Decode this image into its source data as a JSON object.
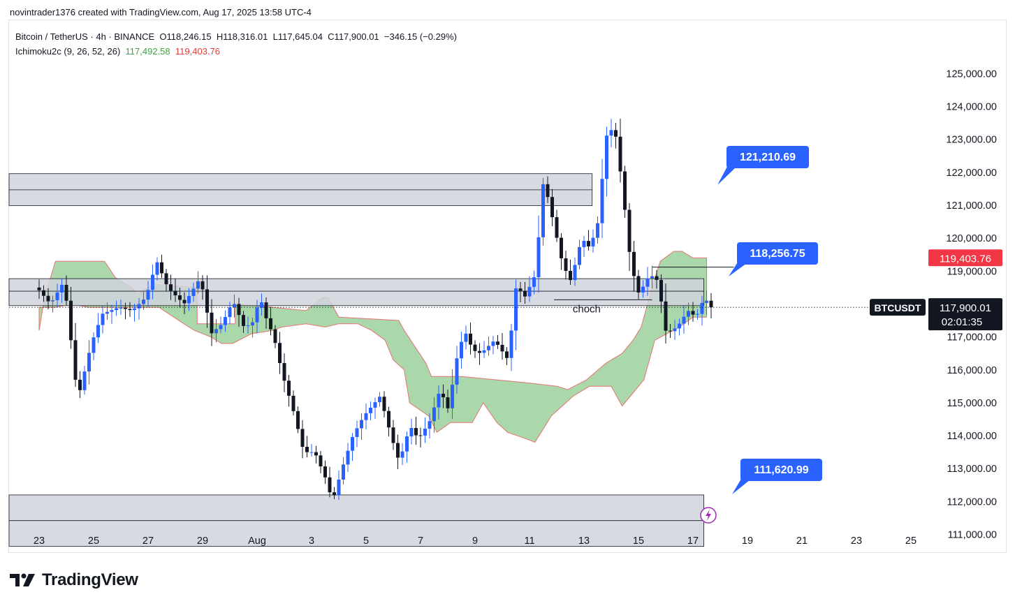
{
  "header": {
    "attribution": "novintrader1376 created with TradingView.com, Aug 17, 2025 13:58 UTC-4"
  },
  "legend": {
    "symbol_line": "Bitcoin / TetherUS · 4h · BINANCE",
    "open": "O118,246.15",
    "high": "H118,316.01",
    "low": "L117,645.04",
    "close": "C117,900.01",
    "change": "−346.15 (−0.29%)",
    "indicator": "Ichimoku2c (9, 26, 52, 26)",
    "ind_value1": "117,492.58",
    "ind_value2": "119,403.76"
  },
  "brand": {
    "name": "TradingView"
  },
  "colors": {
    "up": "#2962ff",
    "down": "#131722",
    "cloud": "#a5d6a7",
    "cloud_edge": "#e57373",
    "zone": "#d1d4dc",
    "tag_blue": "#2962ff",
    "tag_red": "#f23645",
    "tag_green": "#43a047",
    "tag_black": "#131722"
  },
  "chart_data": {
    "type": "candlestick",
    "symbol": "BTCUSDT",
    "timeframe": "4h",
    "ylim": [
      110500,
      126200
    ],
    "y_ticks": [
      111000,
      112000,
      113000,
      114000,
      115000,
      116000,
      117000,
      118000,
      119000,
      120000,
      121000,
      122000,
      123000,
      124000,
      125000
    ],
    "y_tick_labels": [
      "111,000.00",
      "112,000.00",
      "113,000.00",
      "114,000.00",
      "115,000.00",
      "116,000.00",
      "117,000.00",
      "118,000.00",
      "119,000.00",
      "120,000.00",
      "121,000.00",
      "122,000.00",
      "123,000.00",
      "124,000.00",
      "125,000.00"
    ],
    "x_ticks": [
      {
        "label": "23",
        "day": -8
      },
      {
        "label": "25",
        "day": -6
      },
      {
        "label": "27",
        "day": -4
      },
      {
        "label": "29",
        "day": -2
      },
      {
        "label": "Aug",
        "day": 0
      },
      {
        "label": "3",
        "day": 2
      },
      {
        "label": "5",
        "day": 4
      },
      {
        "label": "7",
        "day": 6
      },
      {
        "label": "9",
        "day": 8
      },
      {
        "label": "11",
        "day": 10
      },
      {
        "label": "13",
        "day": 12
      },
      {
        "label": "15",
        "day": 14
      },
      {
        "label": "17",
        "day": 16
      },
      {
        "label": "19",
        "day": 18
      },
      {
        "label": "21",
        "day": 20
      },
      {
        "label": "23",
        "day": 22
      },
      {
        "label": "25",
        "day": 24
      }
    ],
    "price_path": [
      [
        -8,
        118500
      ],
      [
        -7.5,
        118000
      ],
      [
        -7,
        118700
      ],
      [
        -6.5,
        115100
      ],
      [
        -6,
        116800
      ],
      [
        -5.6,
        117700
      ],
      [
        -5,
        117900
      ],
      [
        -4.5,
        117800
      ],
      [
        -4,
        118200
      ],
      [
        -3.6,
        119300
      ],
      [
        -3.2,
        118500
      ],
      [
        -2.6,
        118000
      ],
      [
        -2,
        118800
      ],
      [
        -1.6,
        117100
      ],
      [
        -1.2,
        117400
      ],
      [
        -0.8,
        118100
      ],
      [
        -0.4,
        117300
      ],
      [
        -0.1,
        117400
      ],
      [
        0.2,
        118200
      ],
      [
        0.4,
        117600
      ],
      [
        0.7,
        117000
      ],
      [
        1.0,
        115900
      ],
      [
        1.4,
        114800
      ],
      [
        1.8,
        113500
      ],
      [
        2.2,
        113500
      ],
      [
        2.6,
        112700
      ],
      [
        2.85,
        112000
      ],
      [
        3.2,
        113000
      ],
      [
        3.6,
        114000
      ],
      [
        4.0,
        114600
      ],
      [
        4.6,
        115200
      ],
      [
        5.0,
        114000
      ],
      [
        5.3,
        113200
      ],
      [
        5.7,
        114300
      ],
      [
        6.0,
        113900
      ],
      [
        6.4,
        114400
      ],
      [
        6.8,
        115400
      ],
      [
        7.1,
        114800
      ],
      [
        7.4,
        116300
      ],
      [
        7.7,
        117200
      ],
      [
        8.0,
        116600
      ],
      [
        8.3,
        116500
      ],
      [
        8.8,
        116900
      ],
      [
        9.3,
        116300
      ],
      [
        9.6,
        118600
      ],
      [
        9.9,
        118200
      ],
      [
        10.3,
        118900
      ],
      [
        10.6,
        121800
      ],
      [
        10.9,
        120700
      ],
      [
        11.3,
        119200
      ],
      [
        11.6,
        118700
      ],
      [
        12.0,
        120000
      ],
      [
        12.3,
        119700
      ],
      [
        12.6,
        120500
      ],
      [
        12.9,
        123100
      ],
      [
        13.2,
        123400
      ],
      [
        13.5,
        121500
      ],
      [
        13.8,
        119200
      ],
      [
        14.1,
        118300
      ],
      [
        14.5,
        118900
      ],
      [
        14.8,
        118700
      ],
      [
        15.1,
        117100
      ],
      [
        15.5,
        117300
      ],
      [
        15.9,
        117800
      ],
      [
        16.2,
        117600
      ],
      [
        16.5,
        118200
      ],
      [
        16.75,
        117900
      ]
    ],
    "cloud": [
      [
        -8,
        117200
      ],
      [
        -7.8,
        118200
      ],
      [
        -7.4,
        119300
      ],
      [
        -6,
        119300
      ],
      [
        -5.6,
        119300
      ],
      [
        -5.2,
        118800
      ],
      [
        -4.6,
        118500
      ],
      [
        -4.4,
        118300
      ],
      [
        -3.8,
        118600
      ],
      [
        -2.2,
        118500
      ],
      [
        -2.2,
        117400
      ],
      [
        -0.8,
        117400
      ],
      [
        -0.8,
        118000
      ],
      [
        0.6,
        117900
      ],
      [
        1.8,
        117800
      ],
      [
        2.4,
        118200
      ],
      [
        2.6,
        118200
      ],
      [
        3.0,
        117600
      ],
      [
        5.2,
        117500
      ],
      [
        5.4,
        117200
      ],
      [
        6.2,
        116200
      ],
      [
        6.4,
        115800
      ],
      [
        7.5,
        115800
      ],
      [
        7.5,
        115800
      ],
      [
        10.0,
        115600
      ],
      [
        11.0,
        115500
      ],
      [
        11.4,
        115400
      ],
      [
        12.1,
        115700
      ],
      [
        12.8,
        116200
      ],
      [
        13.4,
        116500
      ],
      [
        13.8,
        116900
      ],
      [
        14.1,
        117300
      ],
      [
        14.5,
        118500
      ],
      [
        14.8,
        119300
      ],
      [
        15.3,
        119600
      ],
      [
        15.6,
        119600
      ],
      [
        16.0,
        119400
      ],
      [
        16.5,
        119400
      ],
      [
        16.5,
        117600
      ],
      [
        16.0,
        117600
      ],
      [
        15.5,
        117300
      ],
      [
        14.6,
        116900
      ],
      [
        14.2,
        115700
      ],
      [
        13.7,
        115200
      ],
      [
        13.4,
        114900
      ],
      [
        13.0,
        115500
      ],
      [
        12.2,
        115500
      ],
      [
        11.6,
        115200
      ],
      [
        10.8,
        114600
      ],
      [
        10.2,
        113800
      ],
      [
        9.9,
        113900
      ],
      [
        9.2,
        114100
      ],
      [
        8.8,
        114400
      ],
      [
        8.3,
        115000
      ],
      [
        7.9,
        114400
      ],
      [
        7.1,
        114400
      ],
      [
        6.6,
        114100
      ],
      [
        6.3,
        114600
      ],
      [
        5.6,
        115000
      ],
      [
        5.4,
        116000
      ],
      [
        5.0,
        116300
      ],
      [
        4.7,
        116900
      ],
      [
        4.2,
        117200
      ],
      [
        3.7,
        117400
      ],
      [
        3.0,
        117400
      ],
      [
        2.5,
        117300
      ],
      [
        1.8,
        117400
      ],
      [
        0.9,
        117300
      ],
      [
        0.6,
        117200
      ],
      [
        -0.2,
        117100
      ],
      [
        -0.9,
        116800
      ],
      [
        -1.3,
        116800
      ],
      [
        -1.7,
        117000
      ],
      [
        -2.3,
        117200
      ],
      [
        -2.5,
        117300
      ],
      [
        -3.6,
        117900
      ],
      [
        -5.0,
        117900
      ],
      [
        -6.2,
        117900
      ],
      [
        -6.8,
        118000
      ],
      [
        -7.4,
        117900
      ],
      [
        -8,
        117900
      ]
    ],
    "zones": [
      {
        "from": 120990,
        "to": 121960,
        "line": 121470,
        "x_end_day": 12.3
      },
      {
        "from": 117950,
        "to": 118770,
        "line": 118390,
        "x_end_day": 16.4
      },
      {
        "from": 110640,
        "to": 112200,
        "line": 111420,
        "x_end_day": 16.4
      }
    ],
    "annotations": {
      "choch_label": "choch",
      "choch_level": 118130,
      "recent_high_level": 119120
    },
    "callouts": [
      "121,210.69",
      "118,256.75",
      "111,620.99"
    ],
    "price_tags": [
      {
        "label": "119,403.76",
        "value": 119403.76,
        "color": "red"
      },
      {
        "label": "117,492.58",
        "value": 117492.58,
        "color": "green"
      }
    ],
    "last_price": {
      "label": "117,900.01",
      "countdown": "02:01:35",
      "value": 117900.01,
      "symbol_label": "BTCUSDT"
    }
  }
}
